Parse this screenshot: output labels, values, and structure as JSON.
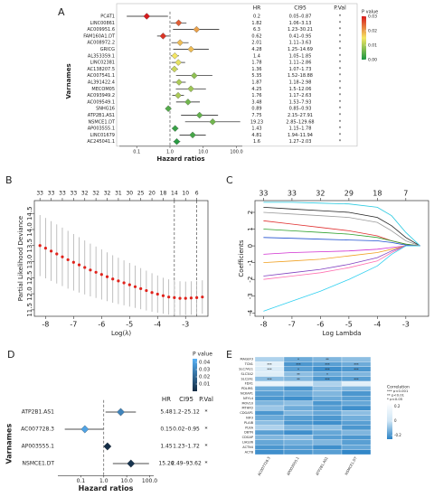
{
  "chart_data": [
    {
      "type": "forest",
      "label": "A",
      "y_label": "Varnames",
      "x_label": "Hazard ratios",
      "columns": [
        "HR",
        "CI95",
        "P.Val"
      ],
      "categories": [
        "PCAT1",
        "LINC00861",
        "AC009951.6",
        "FAM160A1.DT",
        "AC008972.2",
        "GRICG",
        "AL353359.1",
        "LINC02381",
        "AC138207.5",
        "AC007541.1",
        "AL391422.4",
        "MECOM05",
        "AC093949.2",
        "AC009549.1",
        "SNHG16",
        "ATP2B1.AS1",
        "NSMCE1.DT",
        "AP003555.1",
        "LINC01679",
        "AC245041.1"
      ],
      "values": [
        0.2,
        1.82,
        6.3,
        0.62,
        2.01,
        4.28,
        1.4,
        1.78,
        1.36,
        5.35,
        1.87,
        4.25,
        1.76,
        3.48,
        0.89,
        7.75,
        19.23,
        1.43,
        4.81,
        1.6
      ],
      "lower": [
        0.05,
        1.06,
        1.23,
        0.41,
        1.11,
        1.25,
        1.05,
        1.11,
        1.07,
        1.52,
        1.18,
        1.5,
        1.17,
        1.53,
        0.85,
        2.15,
        2.85,
        1.15,
        1.94,
        1.27
      ],
      "upper": [
        0.87,
        3.13,
        30.21,
        0.95,
        3.63,
        14.69,
        1.85,
        2.86,
        1.73,
        18.88,
        2.98,
        12.06,
        2.63,
        7.93,
        0.93,
        27.91,
        129.68,
        1.78,
        11.94,
        2.03
      ],
      "ci_labels": [
        "0.05–0.87",
        "1.06–3.13",
        "1.23–30.21",
        "0.41–0.95",
        "1.11–3.63",
        "1.25–14.69",
        "1.05–1.85",
        "1.11–2.86",
        "1.07–1.73",
        "1.52–18.88",
        "1.18–2.98",
        "1.5–12.06",
        "1.17–2.63",
        "1.53–7.93",
        "0.85–0.93",
        "2.15–27.91",
        "2.85–129.68",
        "1.15–1.78",
        "1.94–11.94",
        "1.27–2.03"
      ],
      "p_labels": [
        "*",
        "*",
        "*",
        "*",
        "*",
        "*",
        "*",
        "*",
        "*",
        "*",
        "*",
        "*",
        "*",
        "*",
        "*",
        "*",
        "*",
        "*",
        "*",
        "*"
      ],
      "pvalues": [
        0.03,
        0.025,
        0.02,
        0.028,
        0.018,
        0.018,
        0.015,
        0.014,
        0.012,
        0.008,
        0.01,
        0.009,
        0.01,
        0.006,
        0.004,
        0.005,
        0.006,
        0.002,
        0.003,
        0.001
      ],
      "colormap": [
        "#1a9641",
        "#f5e663",
        "#d7191c"
      ],
      "color_title": "P value",
      "clim": [
        0,
        0.03
      ],
      "cticks": [
        {
          "value": 0,
          "label": "0.00"
        },
        {
          "value": 0.01,
          "label": "0.01"
        },
        {
          "value": 0.02,
          "label": "0.02"
        },
        {
          "value": 0.03,
          "label": "0.03"
        }
      ],
      "xlim": [
        0.03,
        150
      ],
      "log_x": true,
      "xticks": [
        0.1,
        {
          "value": 1,
          "label": "1.0"
        },
        {
          "value": 10,
          "label": "10.0"
        },
        {
          "value": 100,
          "label": "100.0"
        }
      ],
      "ref_line": 1
    },
    {
      "type": "scatter",
      "label": "B",
      "x_label": "Log(λ)",
      "y_label": "Partial Likelihood Deviance",
      "color": "#e0231c",
      "error_color": "#b0b0b0",
      "x": [
        -8.2,
        -8.0,
        -7.8,
        -7.6,
        -7.4,
        -7.2,
        -7.0,
        -6.8,
        -6.6,
        -6.4,
        -6.2,
        -6.0,
        -5.8,
        -5.6,
        -5.4,
        -5.2,
        -5.0,
        -4.8,
        -4.6,
        -4.4,
        -4.2,
        -4.0,
        -3.8,
        -3.6,
        -3.4,
        -3.2,
        -3.0,
        -2.8,
        -2.6,
        -2.4
      ],
      "values": [
        13.5,
        13.42,
        13.33,
        13.24,
        13.15,
        13.06,
        12.98,
        12.9,
        12.82,
        12.74,
        12.67,
        12.6,
        12.53,
        12.46,
        12.4,
        12.34,
        12.28,
        12.22,
        12.16,
        12.1,
        12.04,
        11.99,
        11.94,
        11.9,
        11.88,
        11.86,
        11.86,
        11.87,
        11.88,
        11.9
      ],
      "errors": [
        0.95,
        0.94,
        0.93,
        0.92,
        0.91,
        0.9,
        0.88,
        0.86,
        0.84,
        0.82,
        0.8,
        0.78,
        0.76,
        0.74,
        0.72,
        0.7,
        0.68,
        0.66,
        0.64,
        0.62,
        0.6,
        0.58,
        0.56,
        0.55,
        0.54,
        0.53,
        0.52,
        0.52,
        0.52,
        0.52
      ],
      "vlines": [
        -3.4,
        -2.6
      ],
      "top_ticks": [
        {
          "value": -8.2,
          "label": "33"
        },
        {
          "value": -7.8,
          "label": "33"
        },
        {
          "value": -7.4,
          "label": "33"
        },
        {
          "value": -7.0,
          "label": "33"
        },
        {
          "value": -6.6,
          "label": "32"
        },
        {
          "value": -6.2,
          "label": "32"
        },
        {
          "value": -5.8,
          "label": "32"
        },
        {
          "value": -5.4,
          "label": "31"
        },
        {
          "value": -5.0,
          "label": "30"
        },
        {
          "value": -4.6,
          "label": "25"
        },
        {
          "value": -4.2,
          "label": "20"
        },
        {
          "value": -3.8,
          "label": "18"
        },
        {
          "value": -3.4,
          "label": "14"
        },
        {
          "value": -3.0,
          "label": "10"
        },
        {
          "value": -2.6,
          "label": "6"
        }
      ],
      "xlim": [
        -8.4,
        -2.2
      ],
      "xticks": [
        -8,
        -7,
        -6,
        -5,
        -4,
        -3
      ],
      "ylim": [
        11.3,
        14.9
      ],
      "yticks": [
        11.5,
        {
          "value": 12,
          "label": "12.0"
        },
        12.5,
        {
          "value": 13,
          "label": "13.0"
        },
        13.5,
        {
          "value": 14,
          "label": "14.0"
        },
        14.5
      ]
    },
    {
      "type": "line",
      "label": "C",
      "x_label": "Log Lambda",
      "y_label": "Coefficients",
      "x": [
        -8,
        -7,
        -6,
        -5,
        -4,
        -3.5,
        -3,
        -2.5
      ],
      "series": [
        {
          "color": "#222222",
          "values": [
            2.3,
            2.2,
            2.1,
            2.0,
            1.7,
            1.2,
            0.5,
            0
          ]
        },
        {
          "color": "#9a9a9a",
          "values": [
            2.0,
            1.9,
            1.8,
            1.7,
            1.4,
            0.9,
            0.3,
            0
          ]
        },
        {
          "color": "#27c9e0",
          "values": [
            2.6,
            2.6,
            2.55,
            2.5,
            2.3,
            1.8,
            0.8,
            0
          ]
        },
        {
          "color": "#e03030",
          "values": [
            1.5,
            1.3,
            1.1,
            0.9,
            0.6,
            0.3,
            0.1,
            0
          ]
        },
        {
          "color": "#2ca02c",
          "values": [
            1.0,
            0.9,
            0.8,
            0.7,
            0.5,
            0.3,
            0.1,
            0
          ]
        },
        {
          "color": "#1f4fd0",
          "values": [
            0.5,
            0.45,
            0.4,
            0.35,
            0.3,
            0.2,
            0.05,
            0
          ]
        },
        {
          "color": "#d030d0",
          "values": [
            -0.5,
            -0.4,
            -0.35,
            -0.3,
            -0.2,
            -0.1,
            0,
            0
          ]
        },
        {
          "color": "#f0a020",
          "values": [
            -1.0,
            -0.9,
            -0.8,
            -0.6,
            -0.4,
            -0.2,
            0,
            0
          ]
        },
        {
          "color": "#8040c0",
          "values": [
            -1.8,
            -1.6,
            -1.4,
            -1.1,
            -0.7,
            -0.3,
            0,
            0
          ]
        },
        {
          "color": "#ff70b0",
          "values": [
            -2.0,
            -1.8,
            -1.6,
            -1.3,
            -0.9,
            -0.4,
            0,
            0
          ]
        },
        {
          "color": "#30d0f0",
          "values": [
            -3.9,
            -3.3,
            -2.7,
            -2.0,
            -1.2,
            -0.5,
            0,
            0
          ]
        }
      ],
      "top_ticks": [
        {
          "value": -8,
          "label": "33"
        },
        {
          "value": -7,
          "label": "33"
        },
        {
          "value": -6,
          "label": "32"
        },
        {
          "value": -5,
          "label": "29"
        },
        {
          "value": -4,
          "label": "18"
        },
        {
          "value": -3,
          "label": "7"
        }
      ],
      "xlim": [
        -8.3,
        -2.2
      ],
      "xticks": [
        -8,
        -7,
        -6,
        -5,
        -4,
        -3
      ],
      "ylim": [
        -4.2,
        2.7
      ],
      "yticks": [
        -4,
        -3,
        -2,
        -1,
        0,
        1,
        2
      ]
    },
    {
      "type": "forest",
      "label": "D",
      "y_label": "Varnames",
      "x_label": "Hazard ratios",
      "columns": [
        "HR",
        "CI95",
        "P.Val"
      ],
      "categories": [
        "ATP2B1.AS1",
        "AC007728.3",
        "AP003555.1",
        "NSMCE1.DT"
      ],
      "values": [
        5.48,
        0.15,
        1.45,
        15.26
      ],
      "lower": [
        1.2,
        0.02,
        1.23,
        2.49
      ],
      "upper": [
        25.12,
        0.95,
        1.72,
        93.62
      ],
      "ci_labels": [
        "1.2–25.12",
        "0.02–0.95",
        "1.23–1.72",
        "2.49–93.62"
      ],
      "p_labels": [
        "*",
        "*",
        "*",
        "*"
      ],
      "pvalues": [
        0.03,
        0.04,
        0.001,
        0.003
      ],
      "colormap": [
        "#132b43",
        "#56b1f7"
      ],
      "color_title": "P value",
      "clim": [
        0,
        0.045
      ],
      "cticks": [
        0.01,
        0.02,
        0.03,
        0.04
      ],
      "xlim": [
        0.01,
        150
      ],
      "log_x": true,
      "xticks": [
        0.1,
        {
          "value": 1,
          "label": "1.0"
        },
        {
          "value": 10,
          "label": "10.0"
        },
        {
          "value": 100,
          "label": "100.0"
        }
      ],
      "ref_line": 1
    },
    {
      "type": "heatmap",
      "label": "E",
      "color_title": "Correlation",
      "notes": [
        "*** p<0.001",
        "** p<0.01",
        "* p<0.05"
      ],
      "categories": [
        "AC007728.3",
        "AP003555.1",
        "ATP2B1.AS1",
        "NSMCE1.DT"
      ],
      "rows": [
        "MAGEF3",
        "TCN1",
        "SLC7A11",
        "SLC3A2",
        "SLC2A1",
        "FDX1",
        "PDLIM1",
        "NCKAP1",
        "NFYL4",
        "MOV10",
        "MTHFD",
        "CDGAP1",
        "NIF3",
        "PLAIB",
        "PLKA",
        "DBTN",
        "CDGAP",
        "LIAS36",
        "ACTN4",
        "ACTB"
      ],
      "values": [
        [
          -0.05,
          -0.15,
          -0.12,
          -0.1
        ],
        [
          0.1,
          -0.2,
          -0.18,
          -0.15
        ],
        [
          0.05,
          -0.18,
          -0.22,
          -0.2
        ],
        [
          0.08,
          -0.1,
          -0.15,
          -0.12
        ],
        [
          -0.1,
          -0.12,
          -0.2,
          -0.18
        ],
        [
          0.15,
          0.05,
          -0.05,
          0.1
        ],
        [
          -0.15,
          -0.2,
          -0.1,
          -0.12
        ],
        [
          -0.18,
          -0.16,
          -0.12,
          -0.2
        ],
        [
          -0.2,
          -0.22,
          -0.15,
          -0.18
        ],
        [
          -0.12,
          -0.1,
          -0.2,
          -0.16
        ],
        [
          -0.08,
          -0.15,
          -0.18,
          -0.22
        ],
        [
          -0.2,
          -0.12,
          -0.16,
          -0.1
        ],
        [
          -0.15,
          -0.18,
          -0.2,
          -0.14
        ],
        [
          -0.1,
          -0.2,
          -0.22,
          -0.18
        ],
        [
          -0.05,
          -0.12,
          -0.1,
          -0.2
        ],
        [
          -0.18,
          -0.22,
          -0.16,
          -0.12
        ],
        [
          -0.12,
          -0.1,
          -0.18,
          -0.2
        ],
        [
          -0.16,
          -0.14,
          -0.12,
          -0.18
        ],
        [
          -0.2,
          -0.18,
          -0.22,
          -0.16
        ],
        [
          -0.22,
          -0.2,
          -0.18,
          -0.24
        ]
      ],
      "stars": [
        [
          null,
          "*",
          "**",
          null
        ],
        [
          "***",
          "***",
          "***",
          "***"
        ],
        [
          "***",
          "*",
          "***",
          "***"
        ],
        [
          null,
          "**",
          "*",
          null
        ],
        [
          "***",
          "**",
          "***",
          "***"
        ],
        [
          null,
          null,
          null,
          null
        ],
        [
          null,
          null,
          null,
          null
        ],
        [
          null,
          null,
          null,
          null
        ],
        [
          null,
          null,
          null,
          null
        ],
        [
          null,
          null,
          null,
          null
        ],
        [
          null,
          null,
          null,
          null
        ],
        [
          null,
          null,
          null,
          null
        ],
        [
          null,
          null,
          null,
          null
        ],
        [
          null,
          null,
          null,
          null
        ],
        [
          null,
          null,
          null,
          null
        ],
        [
          null,
          null,
          null,
          null
        ],
        [
          null,
          null,
          null,
          null
        ],
        [
          null,
          null,
          null,
          null
        ],
        [
          null,
          null,
          null,
          null
        ],
        [
          null,
          null,
          null,
          null
        ]
      ],
      "colormap": [
        "#2b83c6",
        "#cfe6f5",
        "#ffffff"
      ],
      "clim": [
        -0.25,
        0.25
      ],
      "cticks": [
        -0.2,
        0,
        0.2
      ]
    }
  ]
}
